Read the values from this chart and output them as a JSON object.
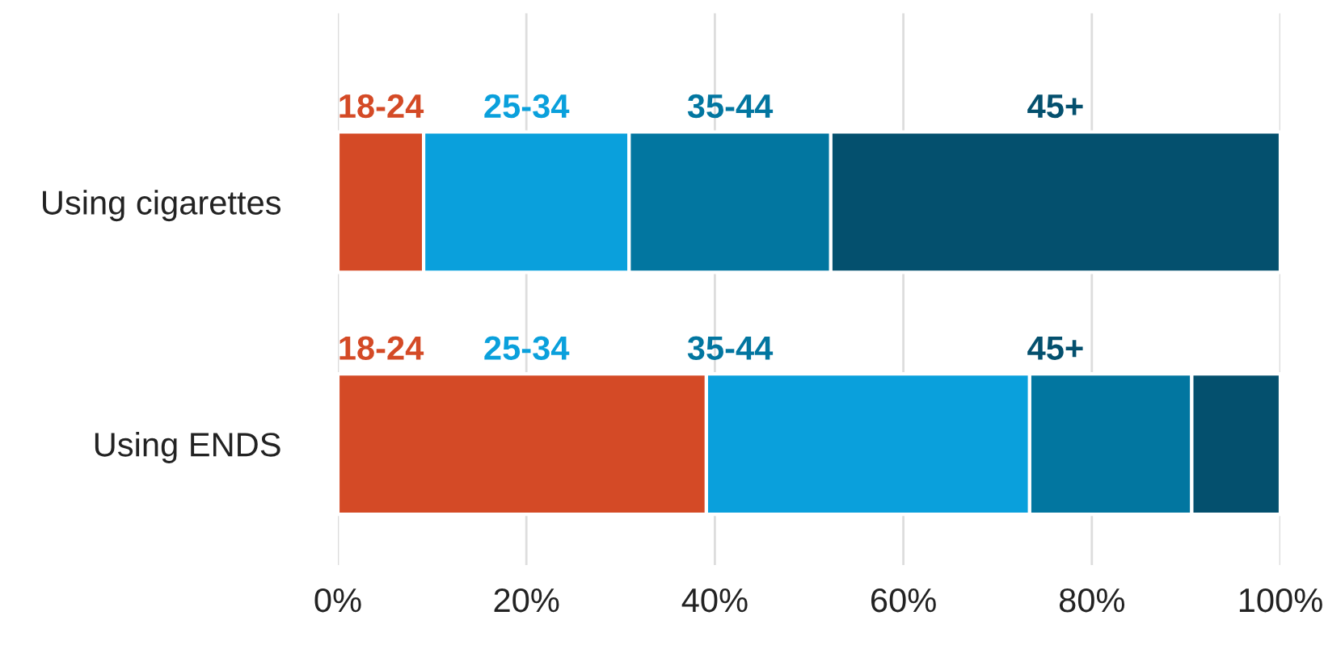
{
  "chart_data": {
    "type": "bar",
    "orientation": "horizontal",
    "stacked": true,
    "categories": [
      "Using cigarettes",
      "Using ENDS"
    ],
    "series": [
      {
        "name": "18-24",
        "color": "#d44a26",
        "values": [
          9.1,
          39.1
        ]
      },
      {
        "name": "25-34",
        "color": "#0aa0dc",
        "values": [
          21.8,
          34.3
        ]
      },
      {
        "name": "35-44",
        "color": "#0276a0",
        "values": [
          21.4,
          17.2
        ]
      },
      {
        "name": "45+",
        "color": "#04506e",
        "values": [
          47.7,
          9.4
        ]
      }
    ],
    "xlim": [
      0,
      100
    ],
    "xticks": [
      {
        "value": 0,
        "label": "0%"
      },
      {
        "value": 20,
        "label": "20%"
      },
      {
        "value": 40,
        "label": "40%"
      },
      {
        "value": 60,
        "label": "60%"
      },
      {
        "value": 80,
        "label": "80%"
      },
      {
        "value": 100,
        "label": "100%"
      }
    ],
    "grid": "x"
  }
}
